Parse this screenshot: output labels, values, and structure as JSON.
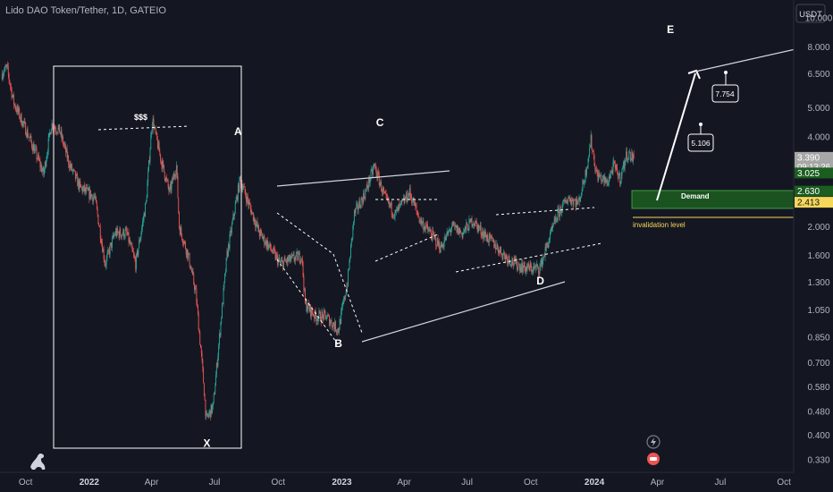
{
  "symbol_title": "Lido DAO Token/Tether, 1D, GATEIO",
  "currency_badge": "USDT",
  "chart_data": {
    "type": "candlestick",
    "y_scale": "log",
    "ylim": [
      0.3,
      11.5
    ],
    "xlim": [
      "2021-08-25",
      "2024-10-15"
    ],
    "y_ticks": [
      "10.000",
      "8.000",
      "6.500",
      "5.000",
      "4.000",
      "3.000",
      "2.000",
      "1.600",
      "1.300",
      "1.050",
      "0.850",
      "0.700",
      "0.580",
      "0.480",
      "0.400",
      "0.330"
    ],
    "x_ticks": [
      {
        "label": "Oct",
        "date": "2021-10-01",
        "year": false
      },
      {
        "label": "2022",
        "date": "2022-01-01",
        "year": true
      },
      {
        "label": "Apr",
        "date": "2022-04-01",
        "year": false
      },
      {
        "label": "Jul",
        "date": "2022-07-01",
        "year": false
      },
      {
        "label": "Oct",
        "date": "2022-10-01",
        "year": false
      },
      {
        "label": "2023",
        "date": "2023-01-01",
        "year": true
      },
      {
        "label": "Apr",
        "date": "2023-04-01",
        "year": false
      },
      {
        "label": "Jul",
        "date": "2023-07-01",
        "year": false
      },
      {
        "label": "Oct",
        "date": "2023-10-01",
        "year": false
      },
      {
        "label": "2024",
        "date": "2024-01-01",
        "year": true
      },
      {
        "label": "Apr",
        "date": "2024-04-01",
        "year": false
      },
      {
        "label": "Jul",
        "date": "2024-07-01",
        "year": false
      },
      {
        "label": "Oct",
        "date": "2024-10-01",
        "year": false
      }
    ],
    "price_path": [
      [
        "2021-08-28",
        6.5
      ],
      [
        "2021-09-05",
        6.8
      ],
      [
        "2021-09-15",
        5.2
      ],
      [
        "2021-10-01",
        4.3
      ],
      [
        "2021-10-15",
        3.6
      ],
      [
        "2021-10-28",
        3.0
      ],
      [
        "2021-11-08",
        4.4
      ],
      [
        "2021-11-20",
        4.2
      ],
      [
        "2021-12-05",
        3.2
      ],
      [
        "2021-12-20",
        2.7
      ],
      [
        "2022-01-10",
        2.5
      ],
      [
        "2022-01-25",
        1.5
      ],
      [
        "2022-02-08",
        1.9
      ],
      [
        "2022-02-25",
        1.9
      ],
      [
        "2022-03-10",
        1.5
      ],
      [
        "2022-03-25",
        2.4
      ],
      [
        "2022-04-03",
        4.6
      ],
      [
        "2022-04-15",
        3.4
      ],
      [
        "2022-04-28",
        2.6
      ],
      [
        "2022-05-08",
        3.2
      ],
      [
        "2022-05-12",
        2.0
      ],
      [
        "2022-05-25",
        1.6
      ],
      [
        "2022-06-05",
        1.2
      ],
      [
        "2022-06-15",
        0.65
      ],
      [
        "2022-06-20",
        0.45
      ],
      [
        "2022-06-30",
        0.5
      ],
      [
        "2022-07-10",
        0.9
      ],
      [
        "2022-07-20",
        1.6
      ],
      [
        "2022-07-30",
        2.2
      ],
      [
        "2022-08-08",
        2.9
      ],
      [
        "2022-08-20",
        2.4
      ],
      [
        "2022-09-05",
        1.9
      ],
      [
        "2022-09-20",
        1.7
      ],
      [
        "2022-10-05",
        1.5
      ],
      [
        "2022-10-20",
        1.55
      ],
      [
        "2022-11-05",
        1.6
      ],
      [
        "2022-11-10",
        1.1
      ],
      [
        "2022-11-25",
        1.0
      ],
      [
        "2022-12-10",
        1.0
      ],
      [
        "2022-12-28",
        0.9
      ],
      [
        "2023-01-10",
        1.3
      ],
      [
        "2023-01-20",
        2.2
      ],
      [
        "2023-02-05",
        2.6
      ],
      [
        "2023-02-18",
        3.2
      ],
      [
        "2023-03-05",
        2.5
      ],
      [
        "2023-03-20",
        2.2
      ],
      [
        "2023-04-10",
        2.6
      ],
      [
        "2023-04-25",
        2.1
      ],
      [
        "2023-05-10",
        1.9
      ],
      [
        "2023-05-25",
        1.7
      ],
      [
        "2023-06-10",
        2.0
      ],
      [
        "2023-06-25",
        1.9
      ],
      [
        "2023-07-10",
        2.1
      ],
      [
        "2023-07-25",
        1.9
      ],
      [
        "2023-08-10",
        1.75
      ],
      [
        "2023-08-25",
        1.6
      ],
      [
        "2023-09-10",
        1.5
      ],
      [
        "2023-09-25",
        1.45
      ],
      [
        "2023-10-15",
        1.45
      ],
      [
        "2023-10-28",
        1.8
      ],
      [
        "2023-11-10",
        2.2
      ],
      [
        "2023-11-25",
        2.5
      ],
      [
        "2023-12-10",
        2.4
      ],
      [
        "2023-12-20",
        3.0
      ],
      [
        "2023-12-28",
        3.9
      ],
      [
        "2024-01-05",
        3.0
      ],
      [
        "2024-01-20",
        2.8
      ],
      [
        "2024-01-30",
        3.2
      ],
      [
        "2024-02-08",
        2.9
      ],
      [
        "2024-02-18",
        3.5
      ],
      [
        "2024-02-28",
        3.39
      ]
    ],
    "wave_labels": [
      {
        "text": "X",
        "date": "2022-06-20",
        "price": 0.365
      },
      {
        "text": "A",
        "date": "2022-08-04",
        "price": 4.05
      },
      {
        "text": "B",
        "date": "2022-12-27",
        "price": 0.79
      },
      {
        "text": "C",
        "date": "2023-02-25",
        "price": 4.35
      },
      {
        "text": "D",
        "date": "2023-10-15",
        "price": 1.28
      },
      {
        "text": "E",
        "date": "2024-04-20",
        "price": 8.9
      }
    ],
    "annotation_text": "$$$",
    "price_targets": [
      "5.106",
      "7.754"
    ],
    "zones": {
      "demand": {
        "label": "Demand",
        "top": 3.025,
        "bottom": 2.63,
        "color": "#1b5e20"
      },
      "invalidation": {
        "label": "invalidation level",
        "price": 2.413,
        "color": "#f5d75a"
      }
    },
    "price_badges": [
      {
        "text": "3.390",
        "sub": "09:13:26",
        "price": 3.39,
        "bg": "#a7a7a7",
        "fg": "#ffffff"
      },
      {
        "text": "3.025",
        "price": 3.025,
        "bg": "#1b5e20",
        "fg": "#ffffff"
      },
      {
        "text": "2.630",
        "price": 2.63,
        "bg": "#1b5e20",
        "fg": "#ffffff"
      },
      {
        "text": "2.413",
        "price": 2.413,
        "bg": "#f5d75a",
        "fg": "#131722"
      }
    ]
  },
  "colors": {
    "background": "#141722",
    "up": "#26a69a",
    "down": "#ef5350",
    "text": "#b2b5be"
  }
}
